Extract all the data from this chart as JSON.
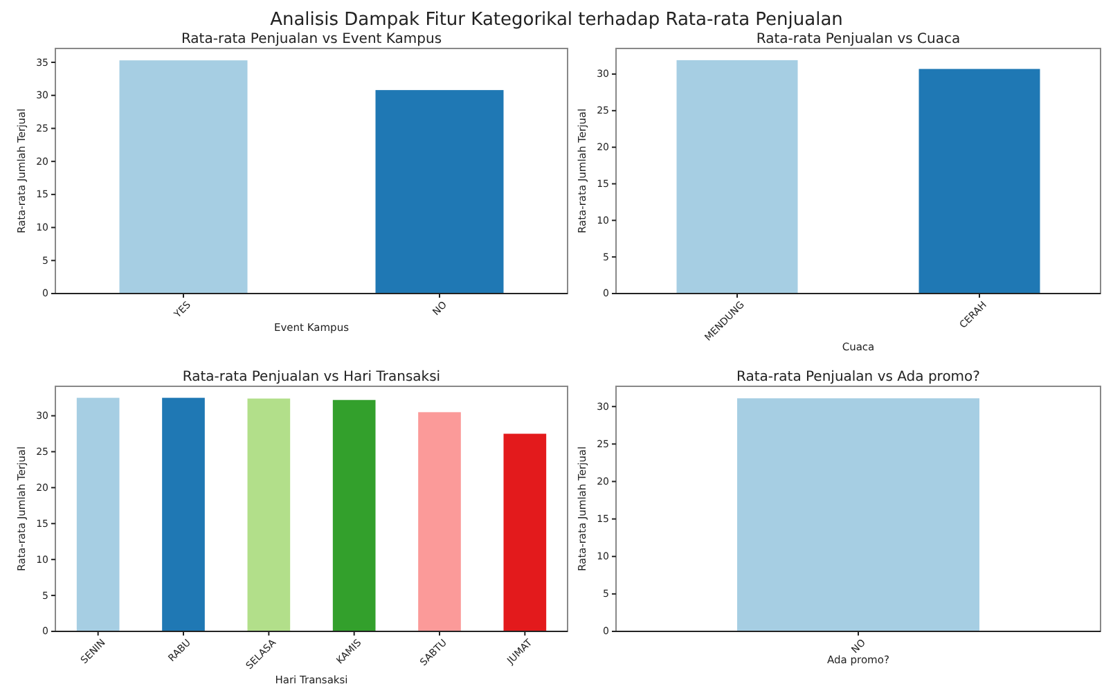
{
  "chart_data": [
    {
      "type": "other",
      "title": "Analisis Dampak Fitur Kategorikal terhadap Rata-rata Penjualan"
    },
    {
      "type": "bar",
      "title": "Rata-rata Penjualan vs Event Kampus",
      "xlabel": "Event Kampus",
      "ylabel": "Rata-rata Jumlah Terjual",
      "categories": [
        "YES",
        "NO"
      ],
      "values": [
        35.3,
        30.8
      ],
      "colors": [
        "#a6cee3",
        "#1f78b4"
      ],
      "ylim": [
        0,
        37.1
      ],
      "yticks": [
        0,
        5,
        10,
        15,
        20,
        25,
        30,
        35
      ]
    },
    {
      "type": "bar",
      "title": "Rata-rata Penjualan vs Cuaca",
      "xlabel": "Cuaca",
      "ylabel": "Rata-rata Jumlah Terjual",
      "categories": [
        "MENDUNG",
        "CERAH"
      ],
      "values": [
        31.9,
        30.7
      ],
      "colors": [
        "#a6cee3",
        "#1f78b4"
      ],
      "ylim": [
        0,
        33.5
      ],
      "yticks": [
        0,
        5,
        10,
        15,
        20,
        25,
        30
      ]
    },
    {
      "type": "bar",
      "title": "Rata-rata Penjualan vs Hari Transaksi",
      "xlabel": "Hari Transaksi",
      "ylabel": "Rata-rata Jumlah Terjual",
      "categories": [
        "SENIN",
        "RABU",
        "SELASA",
        "KAMIS",
        "SABTU",
        "JUMAT"
      ],
      "values": [
        32.5,
        32.5,
        32.4,
        32.2,
        30.5,
        27.5
      ],
      "colors": [
        "#a6cee3",
        "#1f78b4",
        "#b2df8a",
        "#33a02c",
        "#fb9a99",
        "#e31a1c"
      ],
      "ylim": [
        0,
        34.1
      ],
      "yticks": [
        0,
        5,
        10,
        15,
        20,
        25,
        30
      ]
    },
    {
      "type": "bar",
      "title": "Rata-rata Penjualan vs Ada promo?",
      "xlabel": "Ada promo?",
      "ylabel": "Rata-rata Jumlah Terjual",
      "categories": [
        "NO"
      ],
      "values": [
        31.1
      ],
      "colors": [
        "#a6cee3"
      ],
      "ylim": [
        0,
        32.7
      ],
      "yticks": [
        0,
        5,
        10,
        15,
        20,
        25,
        30
      ]
    }
  ]
}
